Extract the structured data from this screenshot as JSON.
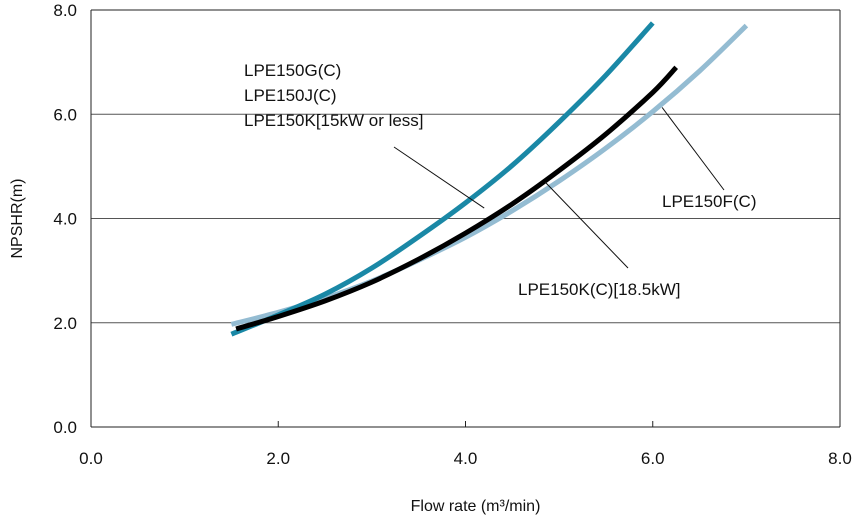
{
  "chart_data": {
    "type": "line",
    "xlabel": "Flow rate (m³/min)",
    "ylabel": "NPSHR(m)",
    "xlim": [
      0,
      8
    ],
    "ylim": [
      0,
      8
    ],
    "xticks": [
      0,
      2,
      4,
      6,
      8
    ],
    "yticks": [
      0,
      2,
      4,
      6,
      8
    ],
    "xtick_labels": [
      "0.0",
      "2.0",
      "4.0",
      "6.0",
      "8.0"
    ],
    "ytick_labels": [
      "0.0",
      "2.0",
      "4.0",
      "6.0",
      "8.0"
    ],
    "grid": "horizontal",
    "colors": {
      "series_1": "#1a88a6",
      "series_2": "#000000",
      "series_3": "#94bcd2",
      "grid": "#555555",
      "axis": "#222222"
    },
    "series": [
      {
        "x": [
          1.5,
          2.0,
          2.5,
          3.0,
          3.5,
          4.0,
          4.5,
          5.0,
          5.5,
          6.0
        ],
        "y": [
          1.78,
          2.15,
          2.55,
          3.05,
          3.65,
          4.3,
          5.02,
          5.85,
          6.75,
          7.75
        ]
      },
      {
        "x": [
          1.55,
          2.0,
          2.5,
          3.0,
          3.5,
          4.0,
          4.5,
          5.0,
          5.5,
          6.0,
          6.25
        ],
        "y": [
          1.88,
          2.12,
          2.42,
          2.78,
          3.22,
          3.72,
          4.28,
          4.92,
          5.62,
          6.42,
          6.9
        ]
      },
      {
        "x": [
          1.5,
          2.0,
          2.5,
          3.0,
          3.5,
          4.0,
          4.5,
          5.0,
          5.5,
          6.0,
          6.5,
          7.0
        ],
        "y": [
          1.97,
          2.2,
          2.47,
          2.8,
          3.2,
          3.64,
          4.15,
          4.72,
          5.35,
          6.05,
          6.83,
          7.7
        ]
      }
    ],
    "annotations": [
      {
        "lines": [
          "LPE150G(C)",
          "LPE150J(C)",
          "LPE150K[15kW or less]"
        ],
        "target": [
          4.2,
          4.2
        ],
        "series_index": 0
      },
      {
        "lines": [
          "LPE150F(C)"
        ],
        "target": [
          6.1,
          6.13
        ],
        "series_index": 2
      },
      {
        "lines": [
          "LPE150K(C)[18.5kW]"
        ],
        "target": [
          4.85,
          4.7
        ],
        "series_index": 1
      }
    ]
  }
}
